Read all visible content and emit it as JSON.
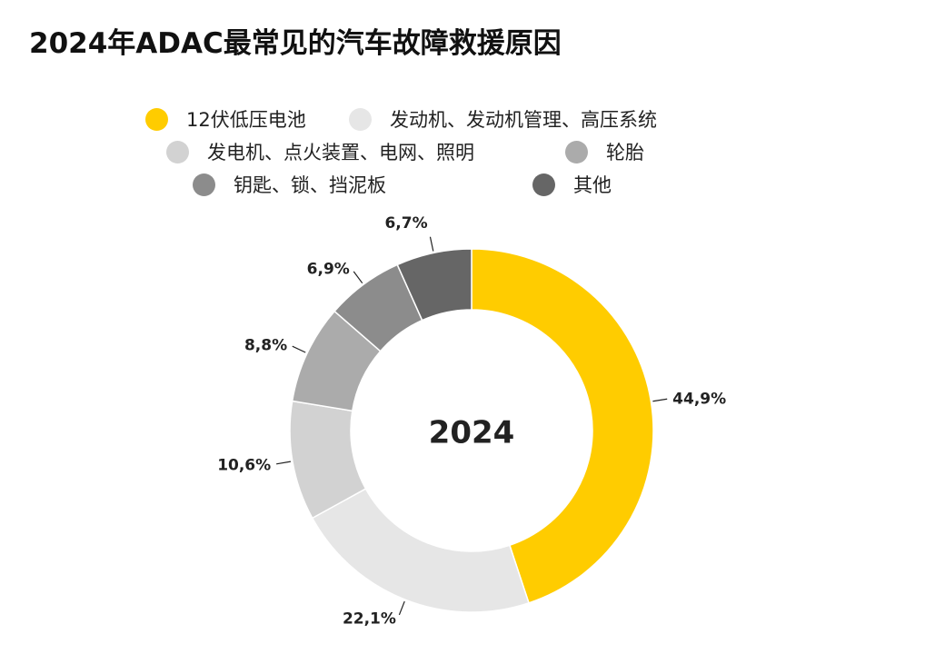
{
  "title": "2024年ADAC最常见的汽车故障救援原因",
  "chart_data": {
    "type": "pie",
    "variant": "donut",
    "title": "2024年ADAC最常见的汽车故障救援原因",
    "center_label": "2024",
    "legend_position": "top",
    "categories": [
      "12伏低压电池",
      "发动机、发动机管理、高压系统",
      "发电机、点火装置、电网、照明",
      "轮胎",
      "钥匙、锁、挡泥板",
      "其他"
    ],
    "values": [
      44.9,
      22.1,
      10.6,
      8.8,
      6.9,
      6.7
    ],
    "value_labels": [
      "44,9%",
      "22,1%",
      "10,6%",
      "8,8%",
      "6,9%",
      "6,7%"
    ],
    "colors": [
      "#FFCC00",
      "#E6E6E6",
      "#D2D2D2",
      "#ABABAB",
      "#8C8C8C",
      "#666666"
    ]
  }
}
